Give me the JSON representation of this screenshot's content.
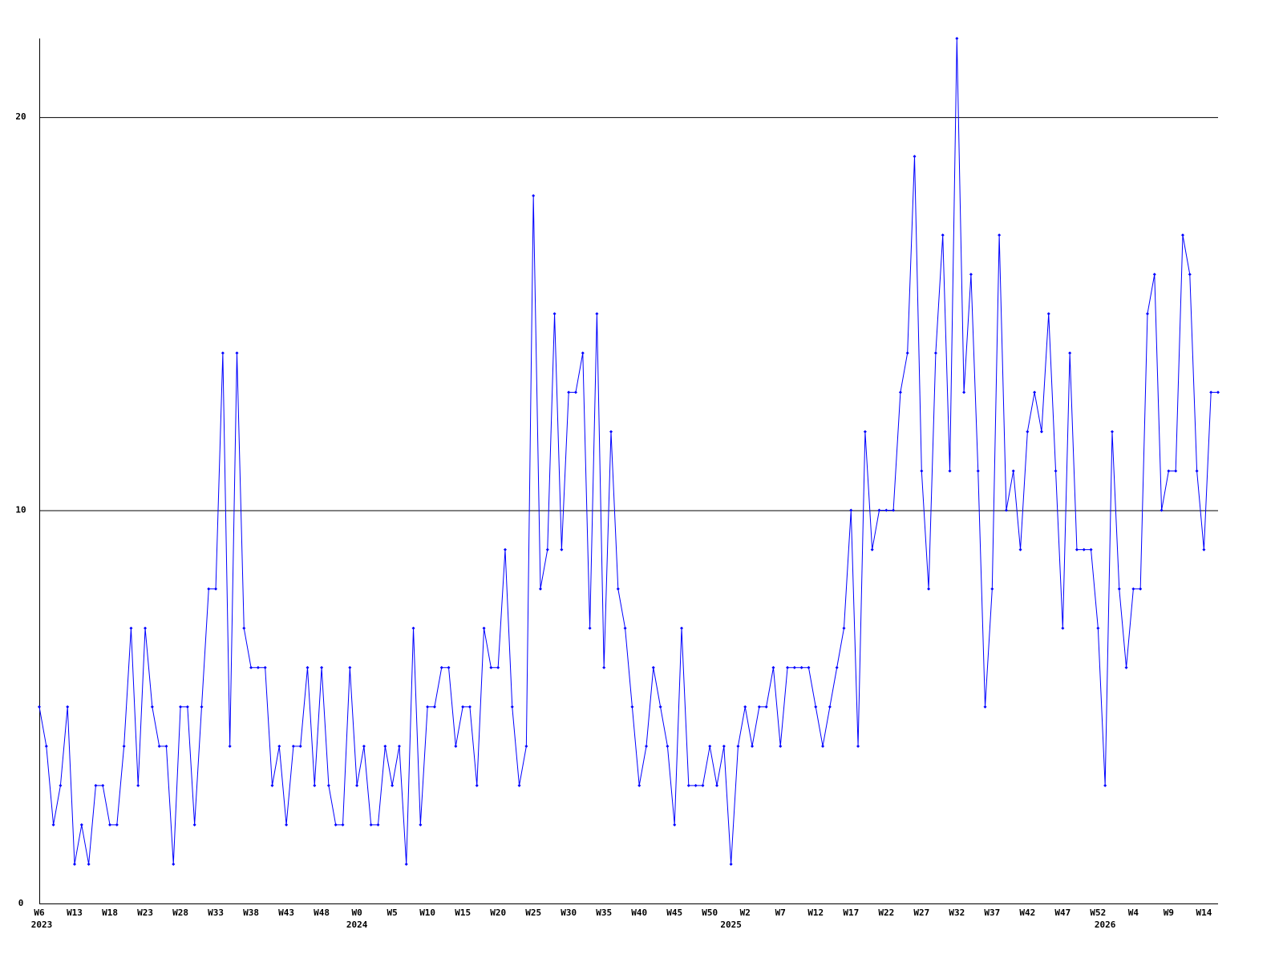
{
  "chart_data": {
    "type": "line",
    "categories": [
      "W6",
      null,
      null,
      null,
      null,
      "W13",
      null,
      null,
      null,
      null,
      "W18",
      null,
      null,
      null,
      null,
      "W23",
      null,
      null,
      null,
      null,
      "W28",
      null,
      null,
      null,
      null,
      "W33",
      null,
      null,
      null,
      null,
      "W38",
      null,
      null,
      null,
      null,
      "W43",
      null,
      null,
      null,
      null,
      "W48",
      null,
      null,
      null,
      null,
      "W0",
      null,
      null,
      null,
      null,
      "W5",
      null,
      null,
      null,
      null,
      "W10",
      null,
      null,
      null,
      null,
      "W15",
      null,
      null,
      null,
      null,
      "W20",
      null,
      null,
      null,
      null,
      "W25",
      null,
      null,
      null,
      null,
      "W30",
      null,
      null,
      null,
      null,
      "W35",
      null,
      null,
      null,
      null,
      "W40",
      null,
      null,
      null,
      null,
      "W45",
      null,
      null,
      null,
      null,
      "W50",
      null,
      null,
      null,
      null,
      "W2",
      null,
      null,
      null,
      null,
      "W7",
      null,
      null,
      null,
      null,
      "W12",
      null,
      null,
      null,
      null,
      "W17",
      null,
      null,
      null,
      null,
      "W22",
      null,
      null,
      null,
      null,
      "W27",
      null,
      null,
      null,
      null,
      "W32",
      null,
      null,
      null,
      null,
      "W37",
      null,
      null,
      null,
      null,
      "W42",
      null,
      null,
      null,
      null,
      "W47",
      null,
      null,
      null,
      null,
      "W52",
      null,
      null,
      null,
      null,
      "W4",
      null,
      null,
      null,
      null,
      "W9",
      null,
      null,
      null,
      null,
      "W14",
      null,
      null
    ],
    "years": [
      "2023",
      null,
      null,
      null,
      null,
      null,
      null,
      null,
      null,
      null,
      null,
      null,
      null,
      null,
      null,
      null,
      null,
      null,
      null,
      null,
      null,
      null,
      null,
      null,
      null,
      null,
      null,
      null,
      null,
      null,
      null,
      null,
      null,
      null,
      null,
      null,
      null,
      null,
      null,
      null,
      null,
      null,
      null,
      null,
      null,
      "2024",
      null,
      null,
      null,
      null,
      null,
      null,
      null,
      null,
      null,
      null,
      null,
      null,
      null,
      null,
      null,
      null,
      null,
      null,
      null,
      null,
      null,
      null,
      null,
      null,
      null,
      null,
      null,
      null,
      null,
      null,
      null,
      null,
      null,
      null,
      null,
      null,
      null,
      null,
      null,
      null,
      null,
      null,
      null,
      null,
      null,
      null,
      null,
      null,
      null,
      null,
      null,
      null,
      "2025",
      null,
      null,
      null,
      null,
      null,
      null,
      null,
      null,
      null,
      null,
      null,
      null,
      null,
      null,
      null,
      null,
      null,
      null,
      null,
      null,
      null,
      null,
      null,
      null,
      null,
      null,
      null,
      null,
      null,
      null,
      null,
      null,
      null,
      null,
      null,
      null,
      null,
      null,
      null,
      null,
      null,
      null,
      null,
      null,
      null,
      null,
      null,
      null,
      null,
      null,
      null,
      null,
      "2026",
      null,
      null,
      null,
      null,
      null,
      null,
      null,
      null,
      null,
      null,
      null,
      null,
      null,
      null,
      null,
      null
    ],
    "values": [
      5,
      4,
      2,
      3,
      5,
      1,
      2,
      1,
      3,
      3,
      2,
      2,
      4,
      7,
      3,
      7,
      5,
      4,
      4,
      1,
      5,
      5,
      2,
      5,
      8,
      8,
      14,
      4,
      14,
      7,
      6,
      6,
      6,
      3,
      4,
      2,
      4,
      4,
      6,
      3,
      6,
      3,
      2,
      2,
      6,
      3,
      4,
      2,
      2,
      4,
      3,
      4,
      1,
      7,
      2,
      5,
      5,
      6,
      6,
      4,
      5,
      5,
      3,
      7,
      6,
      6,
      9,
      5,
      3,
      4,
      18,
      8,
      9,
      15,
      9,
      13,
      13,
      14,
      7,
      15,
      6,
      12,
      8,
      7,
      5,
      3,
      4,
      6,
      5,
      4,
      2,
      7,
      3,
      3,
      3,
      4,
      3,
      4,
      1,
      4,
      5,
      4,
      5,
      5,
      6,
      4,
      6,
      6,
      6,
      6,
      5,
      4,
      5,
      6,
      7,
      10,
      4,
      12,
      9,
      10,
      10,
      10,
      13,
      14,
      19,
      11,
      8,
      14,
      17,
      11,
      22,
      13,
      16,
      11,
      5,
      8,
      17,
      10,
      11,
      9,
      12,
      13,
      12,
      15,
      11,
      7,
      14,
      9,
      9,
      9,
      7,
      3,
      12,
      8,
      6,
      8,
      8,
      15,
      16,
      10,
      11,
      11,
      17,
      16,
      11,
      9,
      13,
      13
    ],
    "color": "#0000ff",
    "ylim": [
      0,
      22
    ],
    "yticks": [
      0,
      10,
      20
    ],
    "grid": true
  }
}
